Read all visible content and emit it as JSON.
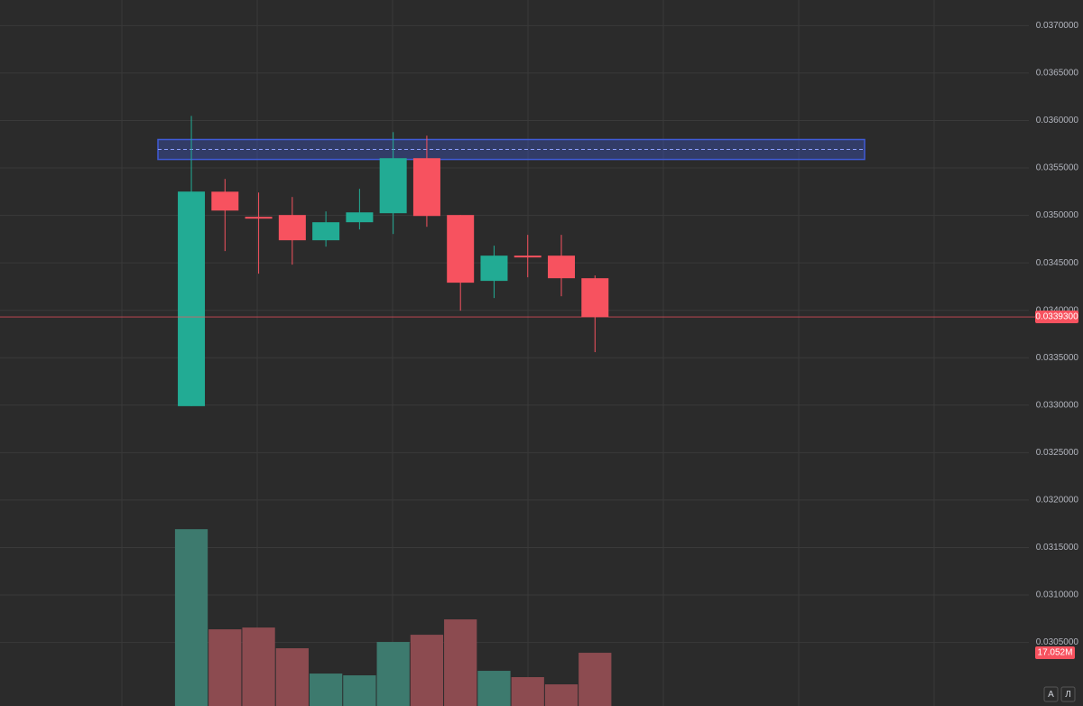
{
  "chart_data": {
    "type": "candlestick",
    "categories": [
      null,
      null,
      null,
      null,
      null,
      null,
      null,
      null,
      null,
      null,
      null,
      null,
      null
    ],
    "open": [
      0.03299,
      0.03525,
      0.034985,
      0.035004,
      0.034738,
      0.034928,
      0.035023,
      0.035603,
      0.035004,
      0.03431,
      0.034576,
      0.034576,
      0.034338
    ],
    "high": [
      0.036049,
      0.035384,
      0.035241,
      0.035194,
      0.035042,
      0.03528,
      0.035878,
      0.03584,
      0.035004,
      0.034681,
      0.034795,
      0.034795,
      0.034367
    ],
    "low": [
      0.03299,
      0.034624,
      0.034386,
      0.034481,
      0.034671,
      0.034852,
      0.034804,
      0.03488,
      0.033996,
      0.034129,
      0.034348,
      0.034148,
      0.033559
    ],
    "close": [
      0.035251,
      0.035051,
      0.034966,
      0.034738,
      0.034928,
      0.035032,
      0.035603,
      0.034994,
      0.034291,
      0.034576,
      0.034557,
      0.034338,
      0.03393
    ],
    "up_color": "#22ab94",
    "down_color": "#f7525f",
    "volume": [
      56650000,
      24570000,
      25140000,
      18500000,
      10400000,
      9830000,
      20520000,
      22830000,
      27750000,
      11270000,
      9250000,
      6940000,
      17052000
    ],
    "volume_up_color": "#3d7a6e",
    "volume_down_color": "#8c4b50",
    "volume_lim": [
      0,
      70000000
    ],
    "last_volume": {
      "value": 17052000,
      "label": "17.052M"
    },
    "ylim": [
      0.02983,
      0.03727
    ],
    "yticks": [
      {
        "value": 0.037,
        "label": "0.0370000"
      },
      {
        "value": 0.0365,
        "label": "0.0365000"
      },
      {
        "value": 0.036,
        "label": "0.0360000"
      },
      {
        "value": 0.0355,
        "label": "0.0355000"
      },
      {
        "value": 0.035,
        "label": "0.0350000"
      },
      {
        "value": 0.0345,
        "label": "0.0345000"
      },
      {
        "value": 0.034,
        "label": "0.0340000"
      },
      {
        "value": 0.0335,
        "label": "0.0335000"
      },
      {
        "value": 0.033,
        "label": "0.0330000"
      },
      {
        "value": 0.0325,
        "label": "0.0325000"
      },
      {
        "value": 0.032,
        "label": "0.0320000"
      },
      {
        "value": 0.0315,
        "label": "0.0315000"
      },
      {
        "value": 0.031,
        "label": "0.0310000"
      },
      {
        "value": 0.0305,
        "label": "0.0305000"
      }
    ],
    "grid": true,
    "last_price": {
      "value": 0.03393,
      "label": "0.0339300"
    },
    "zone": {
      "low": 0.03559,
      "high": 0.0358,
      "color": "#3f5bd6"
    },
    "scale_buttons": [
      "A",
      "Л"
    ]
  }
}
